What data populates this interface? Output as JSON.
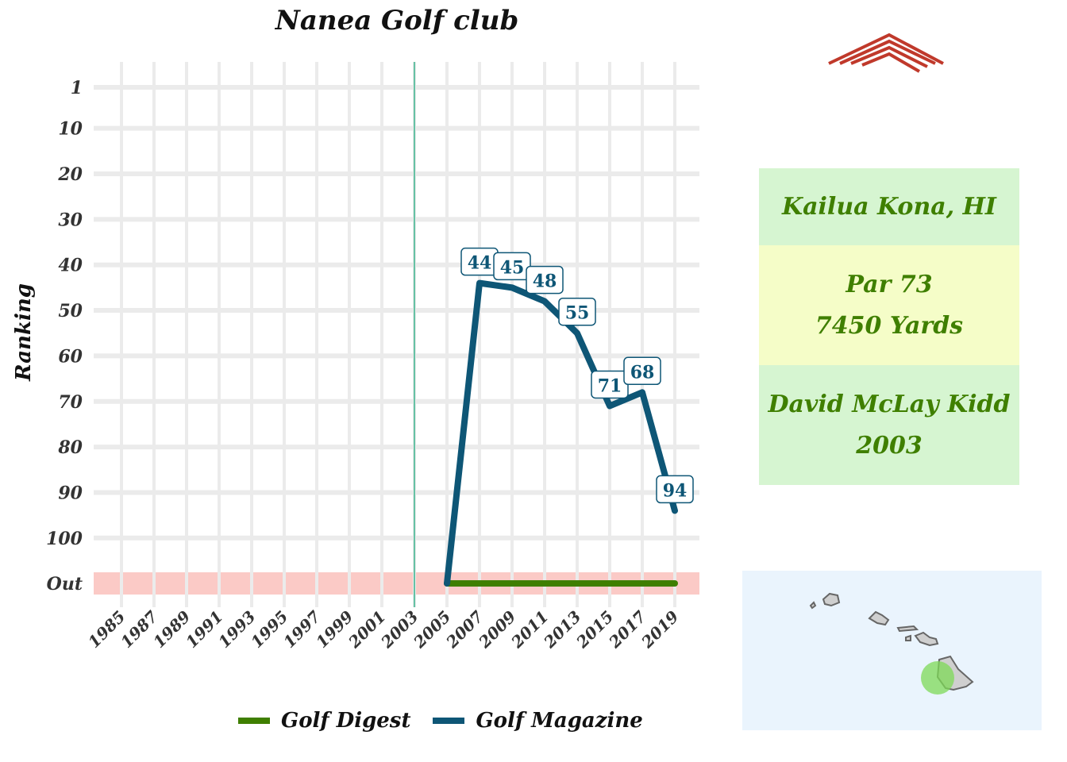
{
  "chart_data": {
    "type": "line",
    "title": "Nanea Golf club",
    "ylabel": "Ranking",
    "xlabel": "",
    "x_ticks": [
      "1985",
      "1987",
      "1989",
      "1991",
      "1993",
      "1995",
      "1997",
      "1999",
      "2001",
      "2003",
      "2005",
      "2007",
      "2009",
      "2011",
      "2013",
      "2015",
      "2017",
      "2019"
    ],
    "y_ticks": [
      "1",
      "10",
      "20",
      "30",
      "40",
      "50",
      "60",
      "70",
      "80",
      "90",
      "100",
      "Out"
    ],
    "y_reversed": true,
    "out_band_label": "Out",
    "reference_line_x": 2003,
    "series": [
      {
        "name": "Golf Digest",
        "color": "#3f7f00",
        "points": [
          {
            "x": 2005,
            "y": "Out"
          },
          {
            "x": 2019,
            "y": "Out"
          }
        ]
      },
      {
        "name": "Golf Magazine",
        "color": "#0e5676",
        "points": [
          {
            "x": 2005,
            "y": "Out"
          },
          {
            "x": 2007,
            "y": 44
          },
          {
            "x": 2009,
            "y": 45
          },
          {
            "x": 2011,
            "y": 48
          },
          {
            "x": 2013,
            "y": 55
          },
          {
            "x": 2015,
            "y": 71
          },
          {
            "x": 2017,
            "y": 68
          },
          {
            "x": 2019,
            "y": 94
          }
        ]
      }
    ],
    "data_labels": [
      {
        "x": 2007,
        "label": "44"
      },
      {
        "x": 2009,
        "label": "45"
      },
      {
        "x": 2011,
        "label": "48"
      },
      {
        "x": 2013,
        "label": "55"
      },
      {
        "x": 2015,
        "label": "71"
      },
      {
        "x": 2017,
        "label": "68"
      },
      {
        "x": 2019,
        "label": "94"
      }
    ],
    "grid": true,
    "legend_position": "bottom"
  },
  "info": {
    "location": "Kailua Kona, HI",
    "par": "Par 73",
    "yards": "7450 Yards",
    "architect": "David McLay Kidd",
    "year": "2003"
  },
  "colors": {
    "reference_line": "#66c2a5",
    "out_band": "#fbcac6",
    "grid": "#ebebeb",
    "logo": "#c0392b",
    "map_bg": "#eaf4fd",
    "highlight": "#7ed957"
  }
}
